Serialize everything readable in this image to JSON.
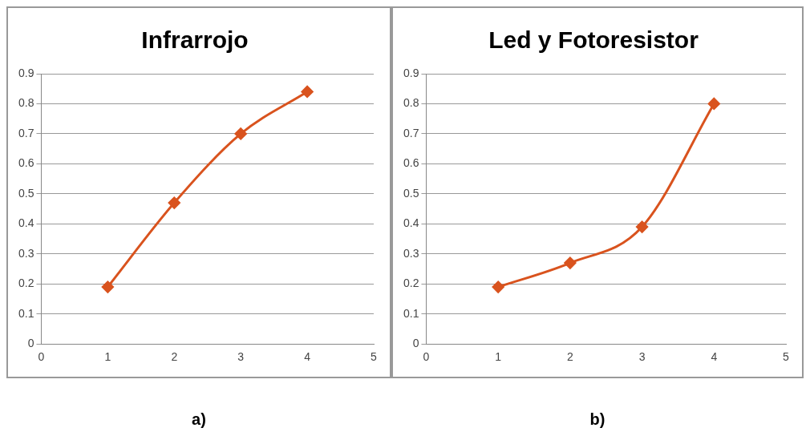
{
  "chart_data": [
    {
      "type": "line",
      "title": "Infrarrojo",
      "x": [
        1,
        2,
        3,
        4
      ],
      "values": [
        0.19,
        0.47,
        0.7,
        0.84
      ],
      "color": "#d9531e",
      "xlim": [
        0,
        5
      ],
      "xticks": [
        0,
        1,
        2,
        3,
        4,
        5
      ],
      "ylim": [
        0,
        0.9
      ],
      "yticks": [
        0,
        0.1,
        0.2,
        0.3,
        0.4,
        0.5,
        0.6,
        0.7,
        0.8,
        0.9
      ],
      "grid": "y",
      "marker": "diamond",
      "legend": false,
      "annotations": [
        "a)"
      ]
    },
    {
      "type": "line",
      "title": "Led y Fotoresistor",
      "x": [
        1,
        2,
        3,
        4
      ],
      "values": [
        0.19,
        0.27,
        0.39,
        0.8
      ],
      "color": "#d9531e",
      "xlim": [
        0,
        5
      ],
      "xticks": [
        0,
        1,
        2,
        3,
        4,
        5
      ],
      "ylim": [
        0,
        0.9
      ],
      "yticks": [
        0,
        0.1,
        0.2,
        0.3,
        0.4,
        0.5,
        0.6,
        0.7,
        0.8,
        0.9
      ],
      "grid": "y",
      "marker": "diamond",
      "legend": false,
      "annotations": [
        "b)"
      ]
    }
  ]
}
